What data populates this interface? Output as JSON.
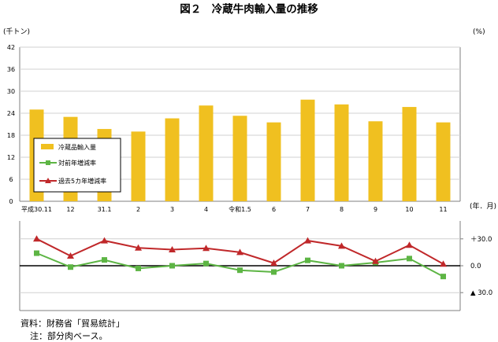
{
  "chart_data": {
    "title": "図２　冷蔵牛肉輸入量の推移",
    "categories": [
      "平成30.11",
      "12",
      "31.1",
      "2",
      "3",
      "4",
      "令和1.5",
      "6",
      "7",
      "8",
      "9",
      "10",
      "11"
    ],
    "x_unit": "(年．月)",
    "bar": {
      "type": "bar",
      "name": "冷蔵品輸入量",
      "unit": "(千トン)",
      "values": [
        25.0,
        23.0,
        19.7,
        19.0,
        22.6,
        26.1,
        23.3,
        21.5,
        27.7,
        26.4,
        21.8,
        25.7,
        21.5
      ],
      "ylim": [
        0,
        42
      ],
      "yticks": [
        0,
        6,
        12,
        18,
        24,
        30,
        36,
        42
      ],
      "color": "#F0C020"
    },
    "lines": {
      "type": "line",
      "unit": "(%)",
      "ylim": [
        -50,
        50
      ],
      "ytick_labels": [
        {
          "value": 30,
          "label": "＋30.0"
        },
        {
          "value": 0,
          "label": "0.0"
        },
        {
          "value": -30,
          "label": "▲ 30.0"
        }
      ],
      "series": [
        {
          "name": "対前年増減率",
          "color": "#5DB544",
          "marker": "square",
          "values": [
            14.0,
            -1.5,
            6.5,
            -3.0,
            0.0,
            2.5,
            -5.0,
            -7.0,
            6.0,
            0.0,
            3.5,
            8.0,
            -12.0
          ]
        },
        {
          "name": "過去5カ年増減率",
          "color": "#C0282A",
          "marker": "triangle",
          "values": [
            30.0,
            11.0,
            28.0,
            20.0,
            18.0,
            19.5,
            15.0,
            3.0,
            28.0,
            22.0,
            5.0,
            23.0,
            2.0
          ]
        }
      ]
    }
  },
  "footnotes": {
    "source": "資料：財務省「貿易統計」",
    "note": "注：部分肉ベース。"
  }
}
